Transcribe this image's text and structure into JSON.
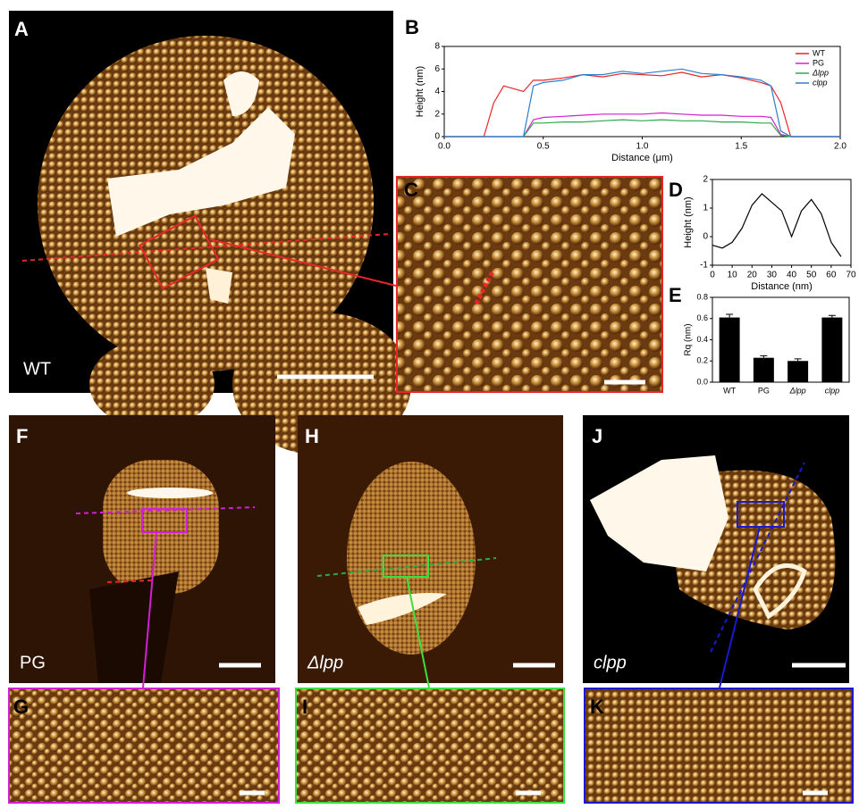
{
  "panels": {
    "A": "A",
    "B": "B",
    "C": "C",
    "D": "D",
    "E": "E",
    "F": "F",
    "G": "G",
    "H": "H",
    "I": "I",
    "J": "J",
    "K": "K",
    "captions": {
      "A": "WT",
      "F": "PG",
      "H": "Δlpp",
      "J": "clpp"
    }
  },
  "chart_data": [
    {
      "type": "line",
      "xlabel": "Distance (μm)",
      "ylabel": "Height (nm)",
      "x": [
        0,
        0.1,
        0.2,
        0.25,
        0.3,
        0.4,
        0.45,
        0.5,
        0.6,
        0.7,
        0.8,
        0.9,
        1.0,
        1.1,
        1.2,
        1.3,
        1.4,
        1.5,
        1.6,
        1.65,
        1.7,
        1.75,
        1.8,
        1.9,
        2.0
      ],
      "series": [
        {
          "name": "WT",
          "color": "#e8262a",
          "values": [
            0,
            0,
            0,
            3,
            4.5,
            4,
            5,
            5,
            5.2,
            5.5,
            5.3,
            5.6,
            5.5,
            5.4,
            5.7,
            5.3,
            5.5,
            5.2,
            4.8,
            4.5,
            3,
            0,
            0,
            0,
            0
          ]
        },
        {
          "name": "PG",
          "color": "#d21fd2",
          "values": [
            0,
            0,
            0,
            0,
            0,
            0,
            1.5,
            1.7,
            1.8,
            1.9,
            2,
            2,
            2,
            2.1,
            2,
            1.9,
            1.9,
            1.8,
            1.8,
            1.7,
            0.2,
            0,
            0,
            0,
            0
          ]
        },
        {
          "name": "Δlpp",
          "color": "#2da84a",
          "values": [
            0,
            0,
            0,
            0,
            0,
            0,
            1.2,
            1.2,
            1.3,
            1.3,
            1.4,
            1.5,
            1.4,
            1.5,
            1.4,
            1.4,
            1.3,
            1.3,
            1.2,
            1.2,
            0.1,
            0,
            0,
            0,
            0
          ]
        },
        {
          "name": "clpp",
          "color": "#2b7fd0",
          "values": [
            0,
            0,
            0,
            0,
            0,
            0,
            4.5,
            4.8,
            5,
            5.5,
            5.5,
            5.8,
            5.6,
            5.8,
            6,
            5.6,
            5.5,
            5.3,
            5,
            4.5,
            0.5,
            0,
            0,
            0,
            0
          ]
        }
      ],
      "xlim": [
        0,
        2
      ],
      "xticks": [
        {
          "value": 0,
          "label": "0.0"
        },
        {
          "value": 0.5,
          "label": "0.5"
        },
        {
          "value": 1,
          "label": "1.0"
        },
        {
          "value": 1.5,
          "label": "1.5"
        },
        {
          "value": 2,
          "label": "2.0"
        }
      ],
      "ylim": [
        0,
        8
      ],
      "yticks": [
        0,
        2,
        4,
        6,
        8
      ],
      "legend": "upper right"
    },
    {
      "type": "line",
      "xlabel": "Distance (nm)",
      "ylabel": "Height (nm)",
      "x": [
        0,
        5,
        10,
        15,
        20,
        25,
        30,
        35,
        40,
        45,
        50,
        55,
        60,
        65
      ],
      "series": [
        {
          "color": "#000000",
          "values": [
            -0.3,
            -0.4,
            -0.2,
            0.3,
            1.1,
            1.5,
            1.2,
            0.9,
            0,
            0.9,
            1.3,
            0.8,
            -0.2,
            -0.7
          ]
        }
      ],
      "xlim": [
        0,
        70
      ],
      "xticks": [
        0,
        10,
        20,
        30,
        40,
        50,
        60,
        70
      ],
      "ylim": [
        -1,
        2
      ],
      "yticks": [
        -1,
        0,
        1,
        2
      ]
    },
    {
      "type": "bar",
      "ylabel": "Rq (nm)",
      "color": "#000000",
      "categories": [
        "WT",
        "PG",
        "Δlpp",
        "clpp"
      ],
      "values": [
        0.61,
        0.23,
        0.2,
        0.61
      ],
      "errors": [
        0.03,
        0.02,
        0.02,
        0.02
      ],
      "ylim": [
        0,
        0.8
      ],
      "yticks": [
        {
          "value": 0,
          "label": "0.0"
        },
        {
          "value": 0.2,
          "label": "0.2"
        },
        {
          "value": 0.4,
          "label": "0.4"
        },
        {
          "value": 0.6,
          "label": "0.6"
        },
        {
          "value": 0.8,
          "label": "0.8"
        }
      ]
    }
  ]
}
